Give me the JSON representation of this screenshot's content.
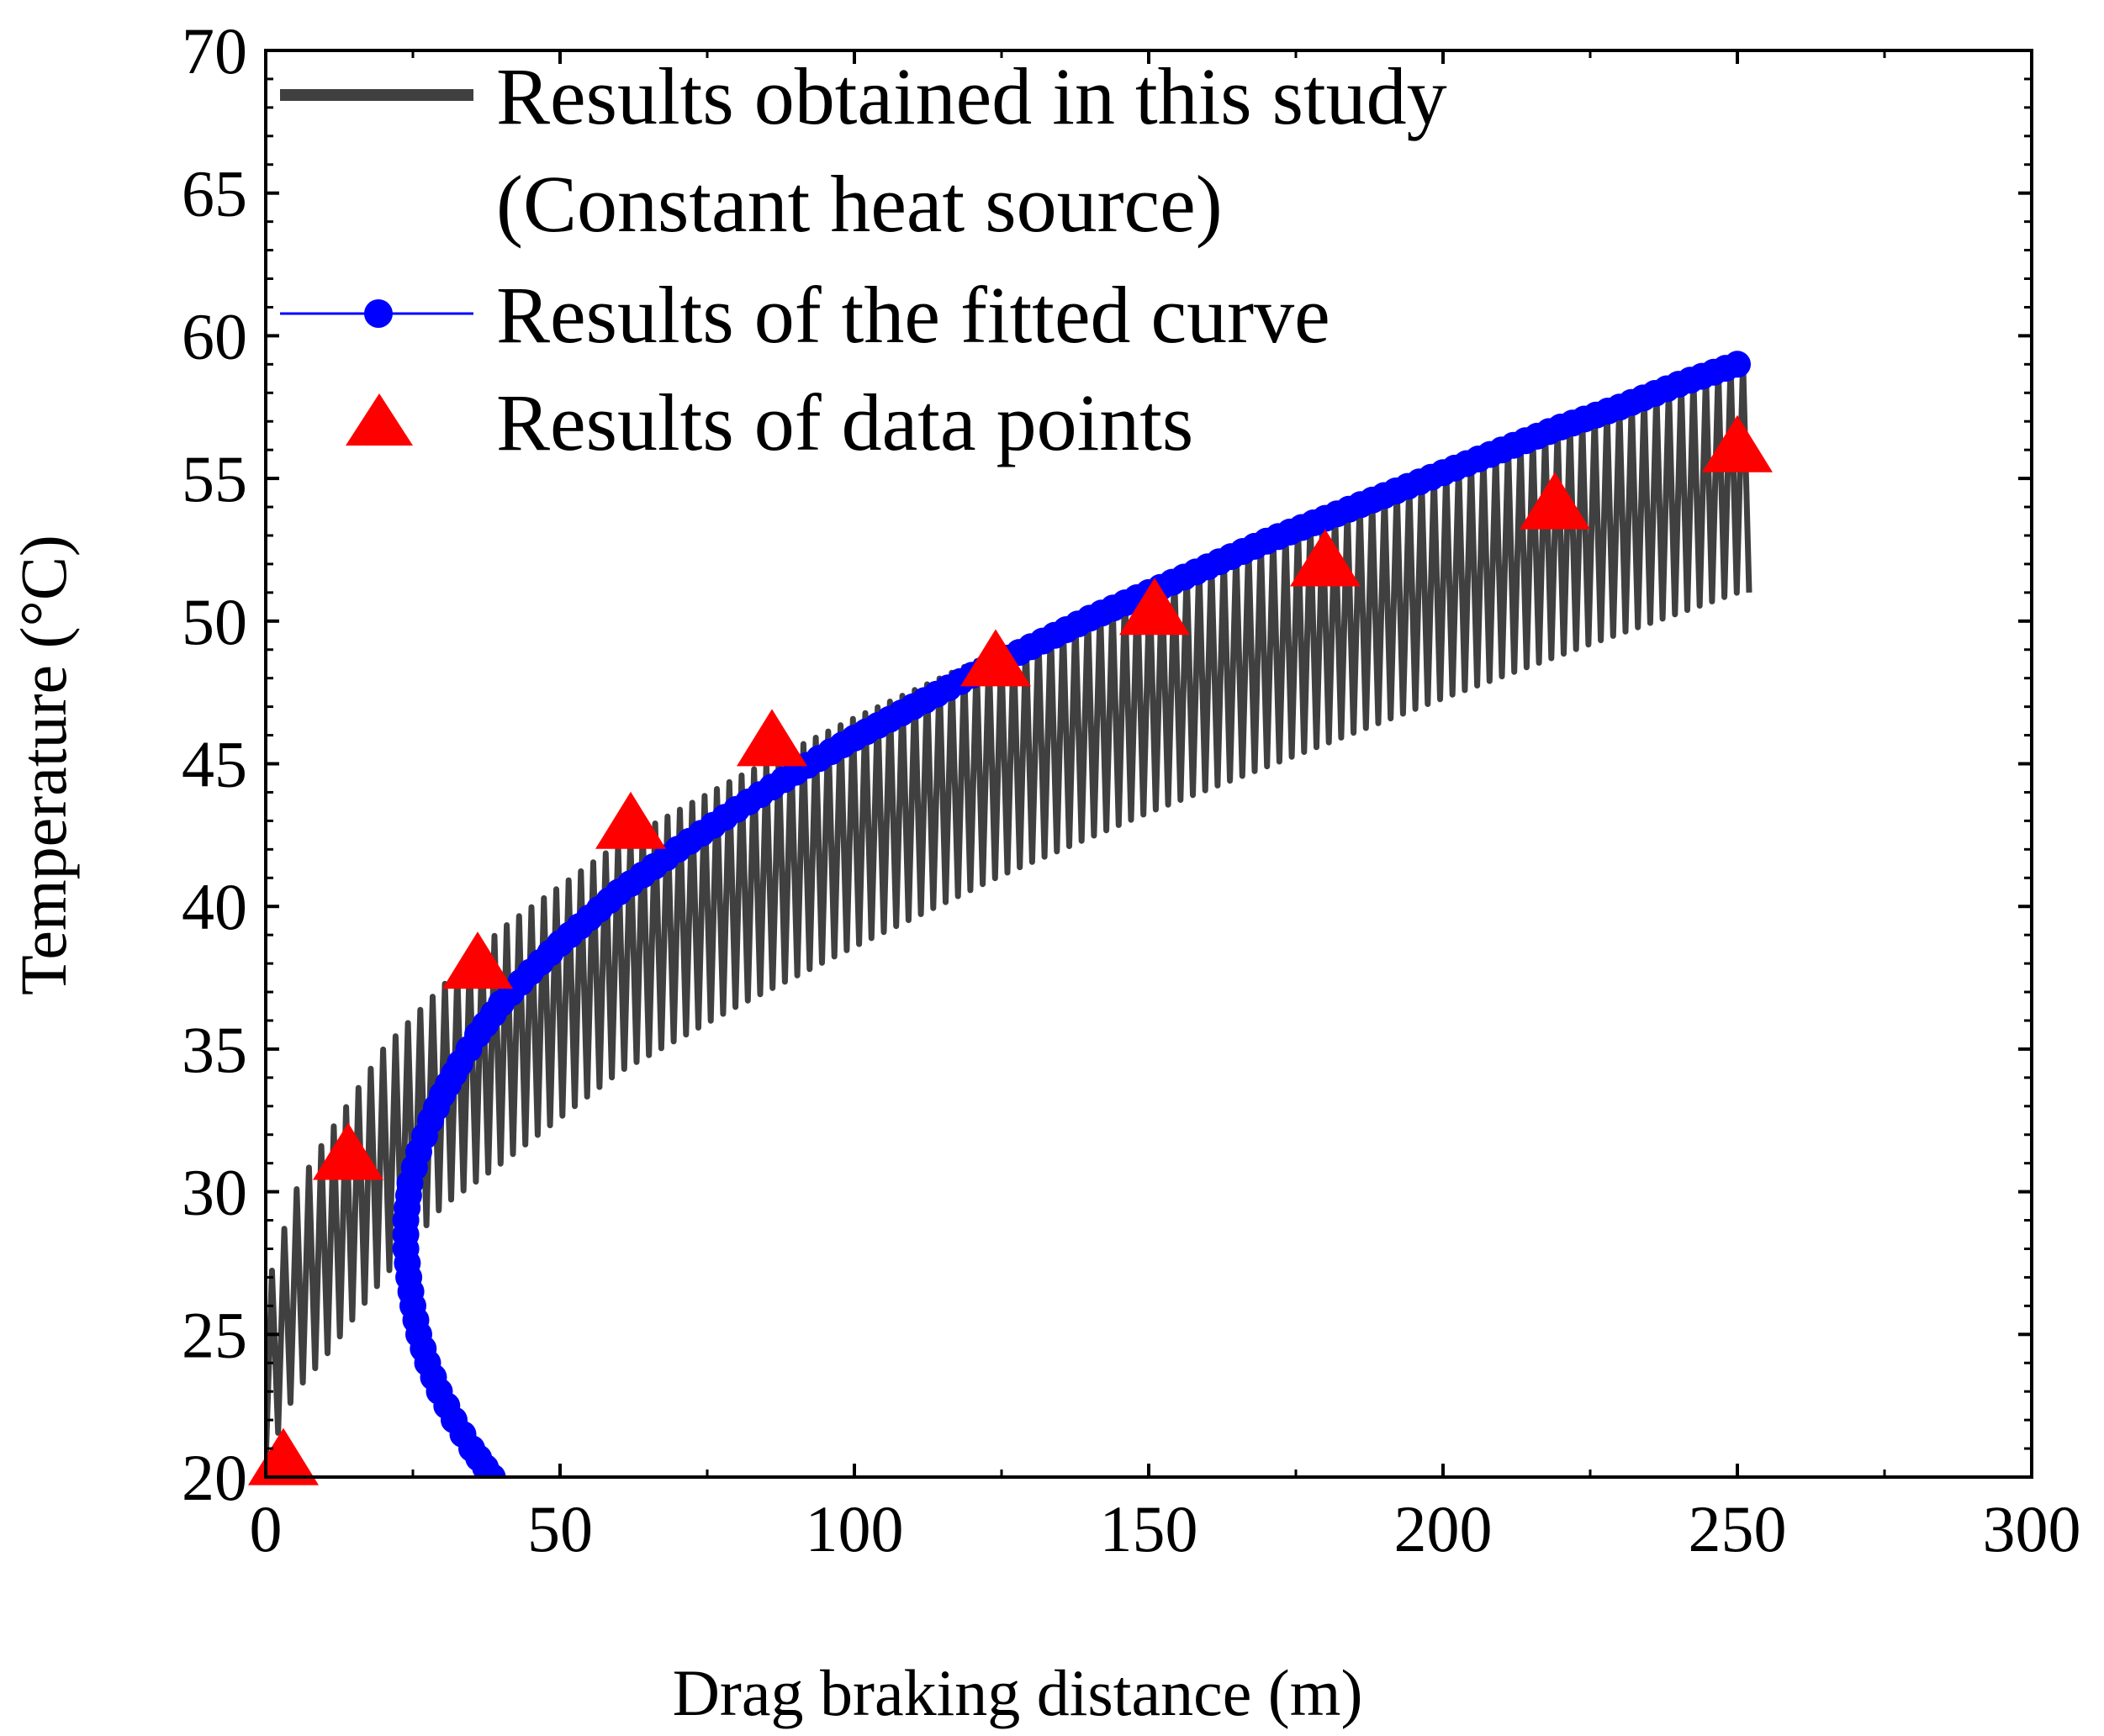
{
  "chart_data": {
    "type": "line",
    "title": "",
    "xlabel": "Drag braking distance (m)",
    "ylabel": "Temperature (°C)",
    "xlim": [
      0,
      300
    ],
    "ylim": [
      20,
      70
    ],
    "x_ticks": [
      "0",
      "50",
      "100",
      "150",
      "200",
      "250",
      "300"
    ],
    "y_ticks": [
      "20",
      "25",
      "30",
      "35",
      "40",
      "45",
      "50",
      "55",
      "60",
      "65",
      "70"
    ],
    "grid": false,
    "legend_position": "top-left",
    "series": [
      {
        "name": "Results obtained in this study",
        "name_line2": "(Constant heat source)",
        "style": "oscillating line",
        "color": "#404040",
        "x_range": [
          0,
          252
        ],
        "upper_envelope_x": [
          0,
          5,
          10,
          20,
          30,
          40,
          60,
          80,
          100,
          125,
          150,
          175,
          200,
          225,
          250
        ],
        "upper_envelope_y": [
          26.5,
          30.0,
          31.8,
          35.0,
          37.2,
          39.2,
          42.2,
          44.5,
          46.6,
          49.0,
          51.3,
          53.3,
          55.3,
          57.2,
          59.1
        ],
        "lower_envelope_y": [
          20.5,
          23.0,
          24.2,
          27.0,
          29.5,
          31.0,
          34.2,
          36.5,
          38.6,
          41.1,
          43.3,
          45.3,
          47.3,
          49.2,
          51.0
        ],
        "approx_cycles": 120
      },
      {
        "name": "Results of the fitted curve",
        "style": "line with circle markers",
        "color": "#0000ff",
        "x": [
          38.5,
          35,
          32,
          29.5,
          27.5,
          26,
          25,
          24.3,
          23.8,
          23.8,
          24.5,
          26,
          28,
          30,
          33,
          36,
          40,
          45,
          50,
          60,
          70,
          80,
          90,
          100,
          110,
          120,
          130,
          140,
          150,
          160,
          170,
          180,
          190,
          200,
          210,
          220,
          230,
          240,
          250
        ],
        "y": [
          20,
          21,
          22,
          23,
          24,
          25,
          26,
          27,
          28,
          29,
          30.3,
          31.4,
          32.5,
          33.4,
          34.5,
          35.5,
          36.6,
          37.7,
          38.7,
          40.5,
          42.0,
          43.4,
          44.7,
          45.9,
          47.0,
          48.1,
          49.1,
          50.1,
          51.0,
          51.9,
          52.8,
          53.6,
          54.4,
          55.2,
          56.0,
          56.8,
          57.5,
          58.3,
          59.0
        ]
      },
      {
        "name": "Results of data points",
        "style": "triangle markers",
        "color": "#ff0000",
        "x": [
          3,
          14,
          36,
          62,
          86,
          124,
          151,
          180,
          219,
          250
        ],
        "y": [
          20.6,
          31.3,
          38.0,
          42.9,
          45.8,
          48.6,
          50.4,
          52.1,
          54.1,
          56.1
        ]
      }
    ]
  }
}
